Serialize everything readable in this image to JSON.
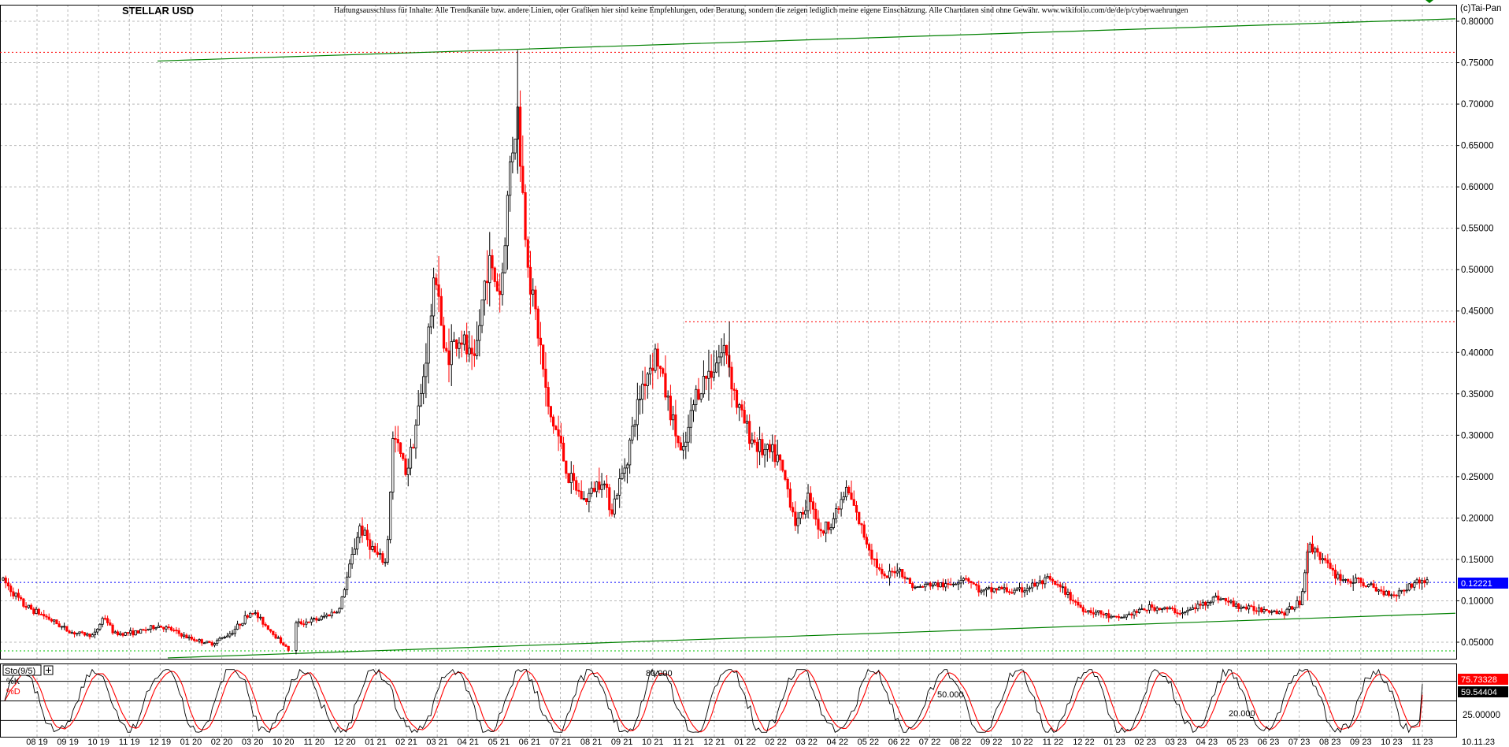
{
  "title": "STELLAR USD",
  "disclaimer": "Haftungsausschluss für Inhalte: Alle Trendkanäle bzw. andere Linien, oder Grafiken hier sind keine Empfehlungen, oder Beratung, sondern die zeigen lediglich meine eigene Einschätzung. Alle Chartdaten sind ohne Gewähr.  www.wikifolio.com/de/de/p/cyberwaehrungen",
  "copyright": "(c)Tai-Pan",
  "colors": {
    "up_candle": "#000000",
    "down_candle": "#ff0000",
    "trendline": "#008000",
    "resistance": "#ff0000",
    "last_price": "#0000ff",
    "grid": "#b8b8b8",
    "stoch_k": "#000000",
    "stoch_d": "#ff0000"
  },
  "chart_data": [
    {
      "type": "candlestick",
      "title": "STELLAR USD",
      "x_tick_labels": [
        "08 19",
        "09 19",
        "10 19",
        "11 19",
        "12 19",
        "01 20",
        "02 20",
        "03 20",
        "10 20",
        "11 20",
        "12 20",
        "01 21",
        "02 21",
        "03 21",
        "04 21",
        "05 21",
        "06 21",
        "07 21",
        "08 21",
        "09 21",
        "10 21",
        "11 21",
        "12 21",
        "01 22",
        "02 22",
        "03 22",
        "04 22",
        "05 22",
        "06 22",
        "07 22",
        "08 22",
        "09 22",
        "10 22",
        "11 22",
        "12 22",
        "01 23",
        "02 23",
        "03 23",
        "04 23",
        "05 23",
        "06 23",
        "07 23",
        "08 23",
        "09 23",
        "10 23",
        "11 23"
      ],
      "last_date": "10.11.23",
      "ylim": [
        0.03,
        0.82
      ],
      "y_tick_labels": [
        "0.80000",
        "0.75000",
        "0.70000",
        "0.65000",
        "0.60000",
        "0.55000",
        "0.50000",
        "0.45000",
        "0.40000",
        "0.35000",
        "0.30000",
        "0.25000",
        "0.20000",
        "0.15000",
        "0.10000",
        "0.05000"
      ],
      "y_tick_values": [
        0.8,
        0.75,
        0.7,
        0.65,
        0.6,
        0.55,
        0.5,
        0.45,
        0.4,
        0.35,
        0.3,
        0.25,
        0.2,
        0.15,
        0.1,
        0.05
      ],
      "grid": true,
      "price_path": [
        {
          "m": 0.0,
          "p": 0.125
        },
        {
          "m": 0.6,
          "p": 0.095
        },
        {
          "m": 1.3,
          "p": 0.08
        },
        {
          "m": 2.0,
          "p": 0.062
        },
        {
          "m": 2.7,
          "p": 0.058
        },
        {
          "m": 3.0,
          "p": 0.082
        },
        {
          "m": 3.3,
          "p": 0.06
        },
        {
          "m": 4.0,
          "p": 0.062
        },
        {
          "m": 4.6,
          "p": 0.07
        },
        {
          "m": 5.0,
          "p": 0.065
        },
        {
          "m": 5.5,
          "p": 0.055
        },
        {
          "m": 6.2,
          "p": 0.048
        },
        {
          "m": 6.8,
          "p": 0.062
        },
        {
          "m": 7.4,
          "p": 0.088
        },
        {
          "m": 8.0,
          "p": 0.062
        },
        {
          "m": 8.5,
          "p": 0.04
        },
        {
          "m": 8.7,
          "p": 0.072
        },
        {
          "m": 9.4,
          "p": 0.078
        },
        {
          "m": 10.0,
          "p": 0.09
        },
        {
          "m": 10.3,
          "p": 0.14
        },
        {
          "m": 10.6,
          "p": 0.19
        },
        {
          "m": 11.1,
          "p": 0.155
        },
        {
          "m": 11.4,
          "p": 0.145
        },
        {
          "m": 11.6,
          "p": 0.3
        },
        {
          "m": 12.0,
          "p": 0.255
        },
        {
          "m": 12.4,
          "p": 0.34
        },
        {
          "m": 12.9,
          "p": 0.505
        },
        {
          "m": 13.1,
          "p": 0.395
        },
        {
          "m": 13.6,
          "p": 0.42
        },
        {
          "m": 14.0,
          "p": 0.38
        },
        {
          "m": 14.4,
          "p": 0.51
        },
        {
          "m": 14.8,
          "p": 0.47
        },
        {
          "m": 15.1,
          "p": 0.64
        },
        {
          "m": 15.3,
          "p": 0.69
        },
        {
          "m": 15.5,
          "p": 0.56
        },
        {
          "m": 15.7,
          "p": 0.48
        },
        {
          "m": 16.0,
          "p": 0.4
        },
        {
          "m": 16.2,
          "p": 0.33
        },
        {
          "m": 16.5,
          "p": 0.3
        },
        {
          "m": 16.8,
          "p": 0.25
        },
        {
          "m": 17.3,
          "p": 0.22
        },
        {
          "m": 17.8,
          "p": 0.25
        },
        {
          "m": 18.1,
          "p": 0.21
        },
        {
          "m": 18.5,
          "p": 0.265
        },
        {
          "m": 19.0,
          "p": 0.36
        },
        {
          "m": 19.4,
          "p": 0.4
        },
        {
          "m": 19.9,
          "p": 0.32
        },
        {
          "m": 20.2,
          "p": 0.27
        },
        {
          "m": 20.6,
          "p": 0.35
        },
        {
          "m": 21.2,
          "p": 0.39
        },
        {
          "m": 21.5,
          "p": 0.405
        },
        {
          "m": 21.8,
          "p": 0.34
        },
        {
          "m": 22.2,
          "p": 0.3
        },
        {
          "m": 22.6,
          "p": 0.28
        },
        {
          "m": 23.0,
          "p": 0.275
        },
        {
          "m": 23.3,
          "p": 0.24
        },
        {
          "m": 23.6,
          "p": 0.19
        },
        {
          "m": 24.0,
          "p": 0.23
        },
        {
          "m": 24.3,
          "p": 0.18
        },
        {
          "m": 24.7,
          "p": 0.2
        },
        {
          "m": 25.1,
          "p": 0.235
        },
        {
          "m": 25.5,
          "p": 0.19
        },
        {
          "m": 25.9,
          "p": 0.15
        },
        {
          "m": 26.2,
          "p": 0.125
        },
        {
          "m": 26.6,
          "p": 0.14
        },
        {
          "m": 27.1,
          "p": 0.115
        },
        {
          "m": 27.6,
          "p": 0.12
        },
        {
          "m": 28.1,
          "p": 0.118
        },
        {
          "m": 28.6,
          "p": 0.13
        },
        {
          "m": 29.1,
          "p": 0.11
        },
        {
          "m": 29.6,
          "p": 0.115
        },
        {
          "m": 30.1,
          "p": 0.11
        },
        {
          "m": 30.6,
          "p": 0.118
        },
        {
          "m": 31.1,
          "p": 0.125
        },
        {
          "m": 31.6,
          "p": 0.11
        },
        {
          "m": 32.1,
          "p": 0.09
        },
        {
          "m": 32.6,
          "p": 0.085
        },
        {
          "m": 33.1,
          "p": 0.078
        },
        {
          "m": 33.6,
          "p": 0.085
        },
        {
          "m": 34.1,
          "p": 0.092
        },
        {
          "m": 34.6,
          "p": 0.09
        },
        {
          "m": 35.1,
          "p": 0.085
        },
        {
          "m": 35.6,
          "p": 0.095
        },
        {
          "m": 36.1,
          "p": 0.105
        },
        {
          "m": 36.6,
          "p": 0.095
        },
        {
          "m": 37.1,
          "p": 0.09
        },
        {
          "m": 37.6,
          "p": 0.09
        },
        {
          "m": 38.1,
          "p": 0.085
        },
        {
          "m": 38.6,
          "p": 0.1
        },
        {
          "m": 38.8,
          "p": 0.165
        },
        {
          "m": 39.1,
          "p": 0.16
        },
        {
          "m": 39.5,
          "p": 0.135
        },
        {
          "m": 39.9,
          "p": 0.125
        },
        {
          "m": 40.4,
          "p": 0.122
        },
        {
          "m": 40.9,
          "p": 0.112
        },
        {
          "m": 41.4,
          "p": 0.108
        },
        {
          "m": 41.9,
          "p": 0.12
        },
        {
          "m": 42.2,
          "p": 0.125
        },
        {
          "m": 42.35,
          "p": 0.12221
        }
      ],
      "trendlines": [
        {
          "name": "upper",
          "from": {
            "m": 4.6,
            "p": 0.752
          },
          "to": {
            "m": 43.3,
            "p": 0.803
          }
        },
        {
          "name": "lower",
          "from": {
            "m": 5.0,
            "p": 0.031
          },
          "to": {
            "m": 43.3,
            "p": 0.085
          }
        }
      ],
      "resistance_levels": [
        {
          "value": 0.7625,
          "from_m": 0.0
        },
        {
          "value": 0.437,
          "from_m": 20.4
        }
      ],
      "last_price": 0.12221,
      "last_price_label": "0.12221"
    },
    {
      "type": "line",
      "indicator_label": "Sto(9/5)",
      "series": [
        {
          "name": "%K",
          "color": "#000000"
        },
        {
          "name": "%D",
          "color": "#ff0000"
        }
      ],
      "ylim": [
        0,
        100
      ],
      "levels": [
        {
          "value": 80,
          "label": "80.000"
        },
        {
          "value": 50,
          "label": "50.000"
        },
        {
          "value": 20,
          "label": "20.000"
        }
      ],
      "axis_labels": [
        "25.00000"
      ],
      "last_k": 75.73328,
      "last_k_label": "75.73328",
      "last_d": 59.54404,
      "last_d_label": "59.54404"
    }
  ]
}
